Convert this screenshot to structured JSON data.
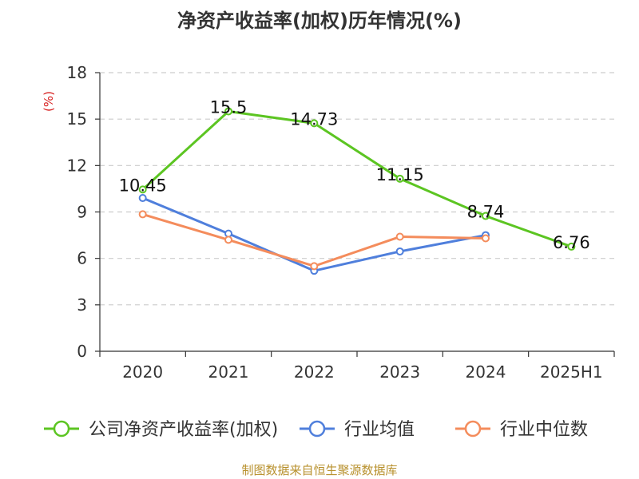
{
  "title": "净资产收益率(加权)历年情况(%)",
  "source": "制图数据来自恒生聚源数据库",
  "chart_data": {
    "type": "line",
    "ylabel": "(%)",
    "xlabel": "",
    "ylim": [
      0,
      18
    ],
    "yticks": [
      0,
      3,
      6,
      9,
      12,
      15,
      18
    ],
    "grid": true,
    "legend_position": "bottom",
    "categories": [
      "2020",
      "2021",
      "2022",
      "2023",
      "2024",
      "2025H1"
    ],
    "series": [
      {
        "name": "公司净资产收益率(加权)",
        "color": "#5cc522",
        "values": [
          10.45,
          15.5,
          14.73,
          11.15,
          8.74,
          6.76
        ],
        "labels": [
          "10.45",
          "15.5",
          "14.73",
          "11.15",
          "8.74",
          "6.76"
        ]
      },
      {
        "name": "行业均值",
        "color": "#4f7fdc",
        "values": [
          9.9,
          7.6,
          5.2,
          6.45,
          7.5,
          null
        ]
      },
      {
        "name": "行业中位数",
        "color": "#f48c5c",
        "values": [
          8.85,
          7.2,
          5.5,
          7.4,
          7.3,
          null
        ]
      }
    ]
  }
}
